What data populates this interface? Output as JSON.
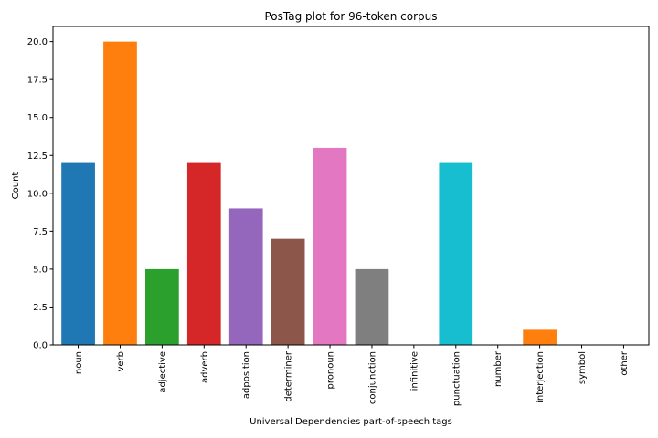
{
  "chart_data": {
    "type": "bar",
    "title": "PosTag plot for 96-token corpus",
    "xlabel": "Universal Dependencies part-of-speech tags",
    "ylabel": "Count",
    "ylim": [
      0,
      21
    ],
    "yticks": [
      "0.0",
      "2.5",
      "5.0",
      "7.5",
      "10.0",
      "12.5",
      "15.0",
      "17.5",
      "20.0"
    ],
    "ytick_values": [
      0,
      2.5,
      5,
      7.5,
      10,
      12.5,
      15,
      17.5,
      20
    ],
    "grid": false,
    "categories": [
      "noun",
      "verb",
      "adjective",
      "adverb",
      "adposition",
      "determiner",
      "pronoun",
      "conjunction",
      "infinitive",
      "punctuation",
      "number",
      "interjection",
      "symbol",
      "other"
    ],
    "values": [
      12,
      20,
      5,
      12,
      9,
      7,
      13,
      5,
      0,
      12,
      0,
      1,
      0,
      0
    ],
    "colors": [
      "#1f77b4",
      "#ff7f0e",
      "#2ca02c",
      "#d62728",
      "#9467bd",
      "#8c564b",
      "#e377c2",
      "#7f7f7f",
      "#bcbd22",
      "#17becf",
      "#1f77b4",
      "#ff7f0e",
      "#2ca02c",
      "#d62728"
    ]
  }
}
